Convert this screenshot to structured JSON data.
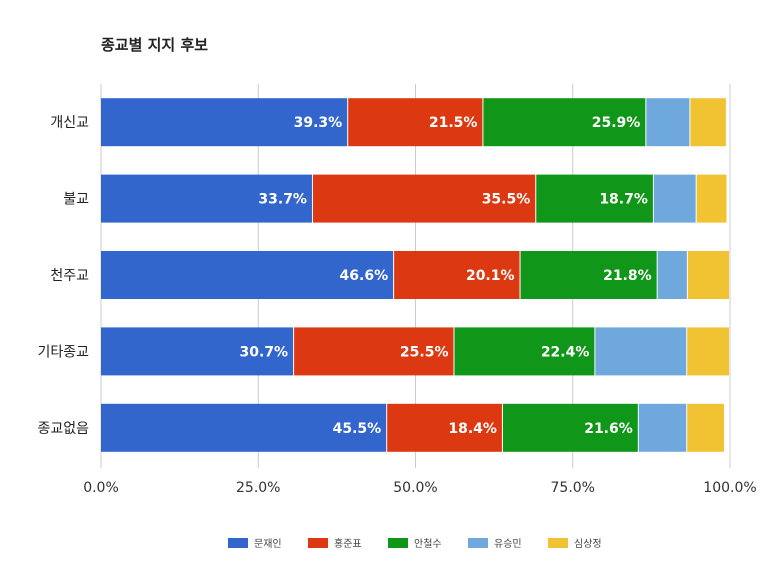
{
  "chart_data": {
    "type": "bar",
    "orientation": "horizontal",
    "stacked": true,
    "title": "종교별 지지 후보",
    "categories": [
      "개신교",
      "불교",
      "천주교",
      "기타종교",
      "종교없음"
    ],
    "series": [
      {
        "name": "문재인",
        "color": "#3366cc",
        "values": [
          39.3,
          33.7,
          46.6,
          30.7,
          45.5
        ]
      },
      {
        "name": "홍준표",
        "color": "#dc3912",
        "values": [
          21.5,
          35.5,
          20.1,
          25.5,
          18.4
        ]
      },
      {
        "name": "안철수",
        "color": "#109618",
        "values": [
          25.9,
          18.7,
          21.8,
          22.4,
          21.6
        ]
      },
      {
        "name": "유승민",
        "color": "#6fa8dc",
        "values": [
          7.0,
          6.8,
          4.8,
          14.6,
          7.7
        ]
      },
      {
        "name": "심상정",
        "color": "#f1c232",
        "values": [
          5.8,
          4.9,
          6.7,
          6.8,
          6.0
        ]
      }
    ],
    "value_labels": [
      [
        "39.3%",
        "21.5%",
        "25.9%",
        "",
        ""
      ],
      [
        "33.7%",
        "35.5%",
        "18.7%",
        "",
        ""
      ],
      [
        "46.6%",
        "20.1%",
        "21.8%",
        "",
        ""
      ],
      [
        "30.7%",
        "25.5%",
        "22.4%",
        "",
        ""
      ],
      [
        "45.5%",
        "18.4%",
        "21.6%",
        "",
        ""
      ]
    ],
    "xlim": [
      0,
      100
    ],
    "xticks": [
      0,
      25,
      50,
      75,
      100
    ],
    "xtick_labels": [
      "0.0%",
      "25.0%",
      "50.0%",
      "75.0%",
      "100.0%"
    ],
    "grid": true,
    "legend_position": "bottom"
  }
}
